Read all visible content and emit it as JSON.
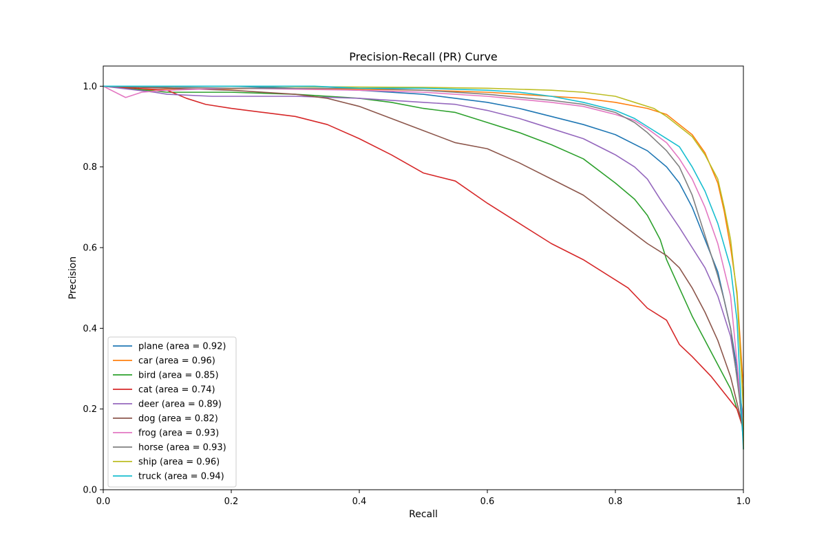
{
  "chart_data": {
    "type": "line",
    "title": "Precision-Recall (PR) Curve",
    "xlabel": "Recall",
    "ylabel": "Precision",
    "xlim": [
      0.0,
      1.0
    ],
    "ylim": [
      0.0,
      1.05
    ],
    "xticks": [
      "0.0",
      "0.2",
      "0.4",
      "0.6",
      "0.8",
      "1.0"
    ],
    "yticks": [
      "0.0",
      "0.2",
      "0.4",
      "0.6",
      "0.8",
      "1.0"
    ],
    "grid": false,
    "legend_position": "lower-left",
    "series": [
      {
        "name": "plane (area = 0.92)",
        "color": "#1f77b4",
        "points": [
          [
            0,
            1.0
          ],
          [
            0.1,
            1.0
          ],
          [
            0.2,
            1.0
          ],
          [
            0.3,
            0.995
          ],
          [
            0.4,
            0.99
          ],
          [
            0.5,
            0.98
          ],
          [
            0.55,
            0.97
          ],
          [
            0.6,
            0.96
          ],
          [
            0.65,
            0.945
          ],
          [
            0.7,
            0.925
          ],
          [
            0.75,
            0.905
          ],
          [
            0.8,
            0.88
          ],
          [
            0.85,
            0.84
          ],
          [
            0.88,
            0.8
          ],
          [
            0.9,
            0.76
          ],
          [
            0.92,
            0.7
          ],
          [
            0.94,
            0.62
          ],
          [
            0.96,
            0.54
          ],
          [
            0.97,
            0.47
          ],
          [
            0.98,
            0.4
          ],
          [
            0.99,
            0.3
          ],
          [
            1.0,
            0.12
          ]
        ]
      },
      {
        "name": "car (area = 0.96)",
        "color": "#ff7f0e",
        "points": [
          [
            0,
            1.0
          ],
          [
            0.055,
            1.0
          ],
          [
            0.055,
            0.99
          ],
          [
            0.1,
            0.992
          ],
          [
            0.3,
            0.995
          ],
          [
            0.5,
            0.99
          ],
          [
            0.6,
            0.985
          ],
          [
            0.7,
            0.975
          ],
          [
            0.75,
            0.97
          ],
          [
            0.8,
            0.96
          ],
          [
            0.85,
            0.945
          ],
          [
            0.88,
            0.93
          ],
          [
            0.9,
            0.905
          ],
          [
            0.92,
            0.88
          ],
          [
            0.94,
            0.835
          ],
          [
            0.96,
            0.76
          ],
          [
            0.97,
            0.69
          ],
          [
            0.98,
            0.6
          ],
          [
            0.99,
            0.49
          ],
          [
            1.0,
            0.25
          ],
          [
            1.0,
            0.1
          ]
        ]
      },
      {
        "name": "bird (area = 0.85)",
        "color": "#2ca02c",
        "points": [
          [
            0,
            1.0
          ],
          [
            0.1,
            0.985
          ],
          [
            0.2,
            0.985
          ],
          [
            0.3,
            0.98
          ],
          [
            0.4,
            0.97
          ],
          [
            0.45,
            0.96
          ],
          [
            0.5,
            0.945
          ],
          [
            0.55,
            0.935
          ],
          [
            0.6,
            0.91
          ],
          [
            0.65,
            0.885
          ],
          [
            0.7,
            0.855
          ],
          [
            0.75,
            0.82
          ],
          [
            0.8,
            0.76
          ],
          [
            0.83,
            0.72
          ],
          [
            0.85,
            0.68
          ],
          [
            0.87,
            0.62
          ],
          [
            0.88,
            0.57
          ],
          [
            0.9,
            0.5
          ],
          [
            0.92,
            0.43
          ],
          [
            0.94,
            0.37
          ],
          [
            0.96,
            0.31
          ],
          [
            0.98,
            0.25
          ],
          [
            1.0,
            0.15
          ]
        ]
      },
      {
        "name": "cat (area = 0.74)",
        "color": "#d62728",
        "points": [
          [
            0,
            1.0
          ],
          [
            0.1,
            0.99
          ],
          [
            0.13,
            0.97
          ],
          [
            0.16,
            0.955
          ],
          [
            0.2,
            0.945
          ],
          [
            0.25,
            0.935
          ],
          [
            0.3,
            0.925
          ],
          [
            0.35,
            0.905
          ],
          [
            0.4,
            0.87
          ],
          [
            0.45,
            0.83
          ],
          [
            0.5,
            0.785
          ],
          [
            0.55,
            0.765
          ],
          [
            0.6,
            0.71
          ],
          [
            0.65,
            0.66
          ],
          [
            0.7,
            0.61
          ],
          [
            0.75,
            0.57
          ],
          [
            0.8,
            0.52
          ],
          [
            0.82,
            0.5
          ],
          [
            0.85,
            0.45
          ],
          [
            0.88,
            0.42
          ],
          [
            0.9,
            0.36
          ],
          [
            0.92,
            0.33
          ],
          [
            0.95,
            0.28
          ],
          [
            0.97,
            0.24
          ],
          [
            0.99,
            0.2
          ],
          [
            1.0,
            0.15
          ]
        ]
      },
      {
        "name": "deer (area = 0.89)",
        "color": "#9467bd",
        "points": [
          [
            0,
            1.0
          ],
          [
            0.08,
            0.985
          ],
          [
            0.1,
            0.98
          ],
          [
            0.17,
            0.975
          ],
          [
            0.3,
            0.975
          ],
          [
            0.4,
            0.97
          ],
          [
            0.5,
            0.96
          ],
          [
            0.55,
            0.955
          ],
          [
            0.6,
            0.94
          ],
          [
            0.65,
            0.92
          ],
          [
            0.7,
            0.895
          ],
          [
            0.75,
            0.87
          ],
          [
            0.8,
            0.83
          ],
          [
            0.83,
            0.8
          ],
          [
            0.85,
            0.77
          ],
          [
            0.87,
            0.72
          ],
          [
            0.9,
            0.65
          ],
          [
            0.92,
            0.6
          ],
          [
            0.94,
            0.55
          ],
          [
            0.96,
            0.48
          ],
          [
            0.98,
            0.38
          ],
          [
            1.0,
            0.18
          ]
        ]
      },
      {
        "name": "dog (area = 0.82)",
        "color": "#8c564b",
        "points": [
          [
            0,
            1.0
          ],
          [
            0.2,
            0.99
          ],
          [
            0.3,
            0.98
          ],
          [
            0.35,
            0.97
          ],
          [
            0.4,
            0.95
          ],
          [
            0.45,
            0.92
          ],
          [
            0.5,
            0.89
          ],
          [
            0.55,
            0.86
          ],
          [
            0.6,
            0.845
          ],
          [
            0.65,
            0.81
          ],
          [
            0.7,
            0.77
          ],
          [
            0.75,
            0.73
          ],
          [
            0.8,
            0.67
          ],
          [
            0.85,
            0.61
          ],
          [
            0.88,
            0.58
          ],
          [
            0.9,
            0.55
          ],
          [
            0.92,
            0.5
          ],
          [
            0.94,
            0.44
          ],
          [
            0.96,
            0.37
          ],
          [
            0.98,
            0.28
          ],
          [
            1.0,
            0.15
          ]
        ]
      },
      {
        "name": "frog (area = 0.93)",
        "color": "#e377c2",
        "points": [
          [
            0,
            1.0
          ],
          [
            0.035,
            0.972
          ],
          [
            0.06,
            0.985
          ],
          [
            0.1,
            0.99
          ],
          [
            0.2,
            0.995
          ],
          [
            0.4,
            0.99
          ],
          [
            0.5,
            0.985
          ],
          [
            0.6,
            0.975
          ],
          [
            0.7,
            0.96
          ],
          [
            0.75,
            0.95
          ],
          [
            0.8,
            0.93
          ],
          [
            0.83,
            0.915
          ],
          [
            0.85,
            0.895
          ],
          [
            0.88,
            0.86
          ],
          [
            0.9,
            0.82
          ],
          [
            0.92,
            0.77
          ],
          [
            0.94,
            0.7
          ],
          [
            0.96,
            0.61
          ],
          [
            0.98,
            0.48
          ],
          [
            1.0,
            0.15
          ]
        ]
      },
      {
        "name": "horse (area = 0.93)",
        "color": "#7f7f7f",
        "points": [
          [
            0,
            1.0
          ],
          [
            0.2,
            0.995
          ],
          [
            0.4,
            0.995
          ],
          [
            0.5,
            0.99
          ],
          [
            0.6,
            0.98
          ],
          [
            0.7,
            0.965
          ],
          [
            0.75,
            0.955
          ],
          [
            0.8,
            0.935
          ],
          [
            0.83,
            0.91
          ],
          [
            0.85,
            0.885
          ],
          [
            0.88,
            0.84
          ],
          [
            0.9,
            0.8
          ],
          [
            0.92,
            0.73
          ],
          [
            0.94,
            0.63
          ],
          [
            0.96,
            0.53
          ],
          [
            0.97,
            0.47
          ],
          [
            0.98,
            0.4
          ],
          [
            1.0,
            0.15
          ]
        ]
      },
      {
        "name": "ship (area = 0.96)",
        "color": "#bcbd22",
        "points": [
          [
            0,
            1.0
          ],
          [
            0.2,
            1.0
          ],
          [
            0.4,
            0.998
          ],
          [
            0.5,
            0.997
          ],
          [
            0.6,
            0.995
          ],
          [
            0.7,
            0.99
          ],
          [
            0.75,
            0.985
          ],
          [
            0.8,
            0.975
          ],
          [
            0.83,
            0.96
          ],
          [
            0.86,
            0.945
          ],
          [
            0.88,
            0.925
          ],
          [
            0.9,
            0.9
          ],
          [
            0.92,
            0.875
          ],
          [
            0.94,
            0.83
          ],
          [
            0.96,
            0.77
          ],
          [
            0.97,
            0.7
          ],
          [
            0.98,
            0.62
          ],
          [
            0.99,
            0.48
          ],
          [
            1.0,
            0.2
          ],
          [
            1.0,
            0.1
          ]
        ]
      },
      {
        "name": "truck (area = 0.94)",
        "color": "#17becf",
        "points": [
          [
            0,
            1.0
          ],
          [
            0.33,
            1.0
          ],
          [
            0.4,
            0.995
          ],
          [
            0.5,
            0.995
          ],
          [
            0.6,
            0.99
          ],
          [
            0.65,
            0.985
          ],
          [
            0.7,
            0.975
          ],
          [
            0.75,
            0.96
          ],
          [
            0.8,
            0.94
          ],
          [
            0.83,
            0.92
          ],
          [
            0.85,
            0.9
          ],
          [
            0.88,
            0.87
          ],
          [
            0.9,
            0.85
          ],
          [
            0.92,
            0.8
          ],
          [
            0.94,
            0.74
          ],
          [
            0.96,
            0.66
          ],
          [
            0.98,
            0.55
          ],
          [
            0.99,
            0.42
          ],
          [
            1.0,
            0.1
          ]
        ]
      }
    ]
  }
}
